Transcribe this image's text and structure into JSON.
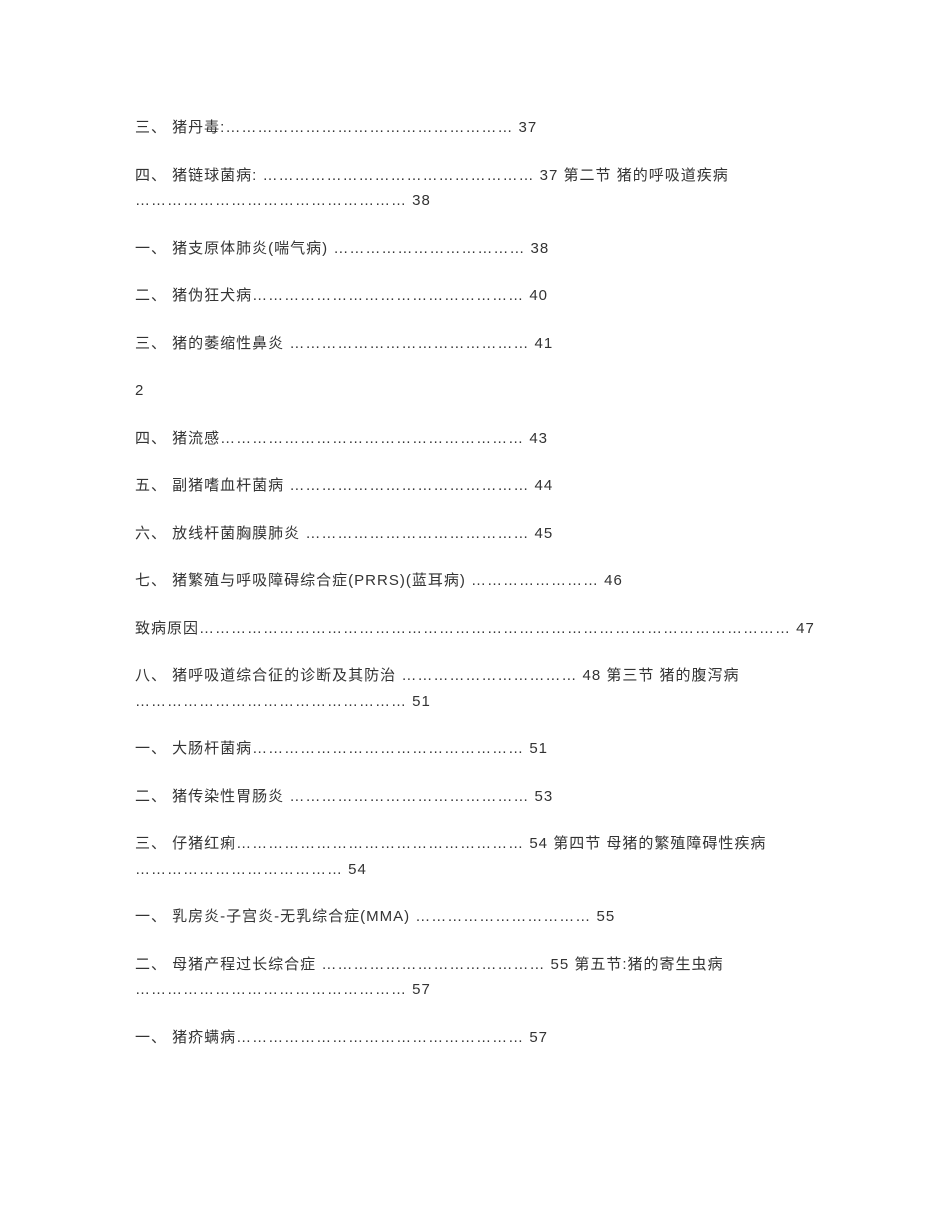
{
  "font_color": "#333333",
  "background_color": "#ffffff",
  "font_size": 15,
  "line_spacing": 22,
  "entries": [
    "三、 猪丹毒:……………………………………………… 37",
    "四、 猪链球菌病: …………………………………………… 37 第二节 猪的呼吸道疾病 …………………………………………… 38",
    "一、 猪支原体肺炎(喘气病) ……………………………… 38",
    "二、 猪伪狂犬病…………………………………………… 40",
    "三、 猪的萎缩性鼻炎 ……………………………………… 41",
    "2",
    "四、 猪流感………………………………………………… 43",
    "五、 副猪嗜血杆菌病 ……………………………………… 44",
    "六、 放线杆菌胸膜肺炎 …………………………………… 45",
    "七、 猪繁殖与呼吸障碍综合症(PRRS)(蓝耳病) …………………… 46",
    "致病原因………………………………………………………………………………………………… 47",
    "八、 猪呼吸道综合征的诊断及其防治 …………………………… 48 第三节 猪的腹泻病 …………………………………………… 51",
    "一、 大肠杆菌病…………………………………………… 51",
    "二、 猪传染性胃肠炎 ……………………………………… 53",
    "三、 仔猪红痢……………………………………………… 54 第四节 母猪的繁殖障碍性疾病 ………………………………… 54",
    "一、 乳房炎-子宫炎-无乳综合症(MMA) ……………………………  55",
    "二、 母猪产程过长综合症 …………………………………… 55 第五节:猪的寄生虫病 …………………………………………… 57",
    "一、 猪疥螨病……………………………………………… 57"
  ]
}
